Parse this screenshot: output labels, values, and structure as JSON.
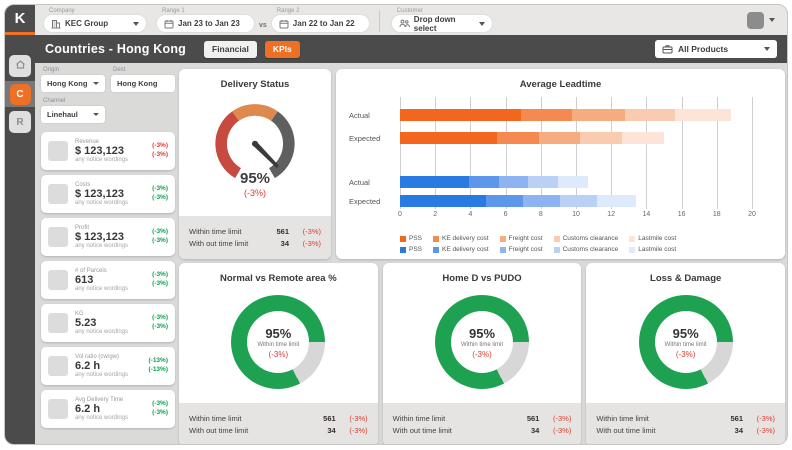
{
  "colors": {
    "accent_orange": "#ED7024",
    "red": "#DC3B30",
    "green": "#0CA14E",
    "gauge_red": "#C64A40",
    "gauge_orange": "#E0894F",
    "gauge_gray": "#5F5F5F",
    "gauge_needle": "#3A3A3A",
    "donut_green": "#1EA251",
    "donut_gray": "#D7D7D7",
    "dark_bar": "#4B4B4B"
  },
  "header": {
    "logo": "K",
    "company": {
      "label": "Company",
      "value": "KEC Group"
    },
    "range1": {
      "label": "Range 1",
      "value": "Jan 23 to Jan 23"
    },
    "vs": "vs",
    "range2": {
      "label": "Range 2",
      "value": "Jan 22 to Jan 22"
    },
    "customer": {
      "label": "Customer",
      "value": "Drop down select"
    }
  },
  "titlebar": {
    "title": "Countries - Hong Kong",
    "tabs": [
      {
        "label": "Financial",
        "active": false
      },
      {
        "label": "KPIs",
        "active": true
      }
    ],
    "products": "All Products"
  },
  "sidebar": {
    "items": [
      {
        "name": "home"
      },
      {
        "name": "C",
        "active": true
      },
      {
        "name": "R"
      }
    ]
  },
  "filters": {
    "origin": {
      "label": "Origin",
      "value": "Hong Kong"
    },
    "dest": {
      "label": "Dest",
      "value": "Hong Kong"
    },
    "channel": {
      "label": "Channel",
      "value": "Linehaul"
    }
  },
  "kpi_cards": [
    {
      "label": "Revenue",
      "value": "$ 123,123",
      "note": "any notice wordings",
      "delta1": "(-3%)",
      "delta2": "(-3%)",
      "trend_color": "red"
    },
    {
      "label": "Costs",
      "value": "$ 123,123",
      "note": "any notice wordings",
      "delta1": "(-3%)",
      "delta2": "(-3%)",
      "trend_color": "green"
    },
    {
      "label": "Profit",
      "value": "$ 123,123",
      "note": "any notice wordings",
      "delta1": "(-3%)",
      "delta2": "(-3%)",
      "trend_color": "green"
    },
    {
      "label": "# of Parcels",
      "value": "613",
      "note": "any notice wordings",
      "delta1": "(-3%)",
      "delta2": "(-3%)",
      "trend_color": "green"
    },
    {
      "label": "KG",
      "value": "5.23",
      "note": "any notice wordings",
      "delta1": "(-3%)",
      "delta2": "(-3%)",
      "trend_color": "green"
    },
    {
      "label": "Vol ratio (cw/gw)",
      "value": "6.2 h",
      "note": "any notice wordings",
      "delta1": "(-13%)",
      "delta2": "(-13%)",
      "trend_color": "green"
    },
    {
      "label": "Avg Delivery Time",
      "value": "6.2 h",
      "note": "any notice wordings",
      "delta1": "(-3%)",
      "delta2": "(-3%)",
      "trend_color": "green"
    }
  ],
  "gauge_card": {
    "title": "Delivery Status",
    "value": "95%",
    "delta": "(-3%)",
    "footer": [
      {
        "label": "Within time limit",
        "value": "561",
        "delta": "(-3%)"
      },
      {
        "label": "With out time limit",
        "value": "34",
        "delta": "(-3%)"
      }
    ]
  },
  "chart_data": {
    "type": "bar",
    "orientation": "horizontal",
    "stacked": true,
    "title": "Average Leadtime",
    "xlabel": "",
    "ylabel": "",
    "xlim": [
      0,
      20
    ],
    "xticks": [
      0,
      2,
      4,
      6,
      8,
      10,
      12,
      14,
      16,
      18,
      20
    ],
    "grid": true,
    "legend_position": "bottom-left",
    "groups": [
      {
        "name": "cost-orange",
        "palette": [
          "#F2661E",
          "#F48A50",
          "#F7AC7F",
          "#FACBAE",
          "#FCE5D8"
        ],
        "legend": [
          "PSS",
          "KE delivery cost",
          "Freight cost",
          "Customs clearance",
          "Lastmile cost"
        ],
        "rows": [
          {
            "label": "Actual",
            "values": [
              6.9,
              2.9,
              3.0,
              2.8,
              3.2
            ]
          },
          {
            "label": "Expected",
            "values": [
              5.5,
              2.4,
              2.3,
              2.4,
              2.4
            ]
          }
        ]
      },
      {
        "name": "cost-blue",
        "palette": [
          "#2A7AE4",
          "#5C97EA",
          "#8DB4F0",
          "#BAD1F6",
          "#DEEAFB"
        ],
        "legend": [
          "PSS",
          "KE delivery cost",
          "Freight cost",
          "Customs clearance",
          "Lastmile cost"
        ],
        "rows": [
          {
            "label": "Actual",
            "values": [
              3.9,
              1.7,
              1.7,
              1.7,
              1.7
            ]
          },
          {
            "label": "Expected",
            "values": [
              4.9,
              2.1,
              2.1,
              2.1,
              2.2
            ]
          }
        ]
      }
    ]
  },
  "donut_cards": [
    {
      "title": "Normal vs Remote area %",
      "value": "95%",
      "center_label": "Within time limit",
      "delta": "(-3%)",
      "percent": 95,
      "gray_from_deg": 90,
      "gray_to_deg": 152,
      "footer": [
        {
          "label": "Within time limit",
          "value": "561",
          "delta": "(-3%)"
        },
        {
          "label": "With out time limit",
          "value": "34",
          "delta": "(-3%)"
        }
      ]
    },
    {
      "title": "Home D vs PUDO",
      "value": "95%",
      "center_label": "Within time limit",
      "delta": "(-3%)",
      "percent": 95,
      "gray_from_deg": 90,
      "gray_to_deg": 152,
      "footer": [
        {
          "label": "Within time limit",
          "value": "561",
          "delta": "(-3%)"
        },
        {
          "label": "With out time limit",
          "value": "34",
          "delta": "(-3%)"
        }
      ]
    },
    {
      "title": "Loss & Damage",
      "value": "95%",
      "center_label": "Within time limit",
      "delta": "(-3%)",
      "percent": 95,
      "gray_from_deg": 90,
      "gray_to_deg": 152,
      "footer": [
        {
          "label": "Within time limit",
          "value": "561",
          "delta": "(-3%)"
        },
        {
          "label": "With out time limit",
          "value": "34",
          "delta": "(-3%)"
        }
      ]
    }
  ]
}
